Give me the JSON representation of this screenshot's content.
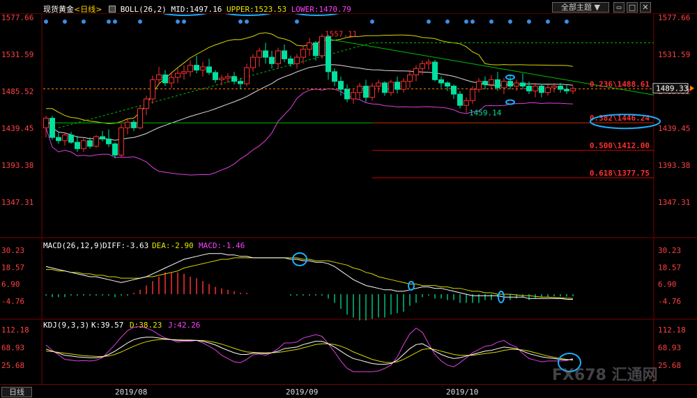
{
  "header": {
    "symbol": "现货黄金",
    "period_tag": "<日线>",
    "boll_label": "BOLL(26,2)",
    "mid": "MID:1497.16",
    "upper": "UPPER:1523.53",
    "lower": "LOWER:1470.79",
    "theme_button": "全部主题 ▼",
    "colors": {
      "mid": "#ffffff",
      "upper": "#e8e800",
      "lower": "#ff40ff",
      "title": "#ffffff",
      "period": "#ffd200"
    }
  },
  "bottom_bar": {
    "period_button": "日线",
    "date_labels": [
      "2019/08",
      "2019/09",
      "2019/10"
    ]
  },
  "watermark": {
    "text": "FX678 汇通网"
  },
  "chart_data": [
    {
      "type": "candlestick",
      "pane": "main",
      "yaxis_ticks": [
        "1577.66",
        "1531.59",
        "1485.52",
        "1439.45",
        "1393.38",
        "1347.31"
      ],
      "ylim": [
        1347.31,
        1577.66
      ],
      "last_price_label": "1489.33",
      "annotations": {
        "high_label": "1557.11",
        "low_label": "1459.14",
        "fib_levels": [
          {
            "label": "0.236\\1488.61",
            "value": 1488.61
          },
          {
            "label": "0.382\\1446.24",
            "value": 1446.24
          },
          {
            "label": "0.500\\1412.00",
            "value": 1412.0
          },
          {
            "label": "0.618\\1377.75",
            "value": 1377.75
          }
        ]
      },
      "candles": [
        [
          1440,
          1455,
          1428,
          1452
        ],
        [
          1452,
          1455,
          1425,
          1428
        ],
        [
          1428,
          1434,
          1420,
          1424
        ],
        [
          1424,
          1434,
          1418,
          1431
        ],
        [
          1431,
          1435,
          1420,
          1422
        ],
        [
          1422,
          1430,
          1410,
          1414
        ],
        [
          1414,
          1427,
          1410,
          1424
        ],
        [
          1424,
          1428,
          1414,
          1417
        ],
        [
          1417,
          1431,
          1415,
          1429
        ],
        [
          1429,
          1436,
          1423,
          1426
        ],
        [
          1426,
          1438,
          1416,
          1420
        ],
        [
          1420,
          1422,
          1402,
          1406
        ],
        [
          1406,
          1445,
          1404,
          1440
        ],
        [
          1440,
          1452,
          1432,
          1447
        ],
        [
          1447,
          1450,
          1436,
          1440
        ],
        [
          1440,
          1468,
          1438,
          1464
        ],
        [
          1464,
          1480,
          1456,
          1476
        ],
        [
          1476,
          1505,
          1470,
          1500
        ],
        [
          1500,
          1516,
          1494,
          1506
        ],
        [
          1506,
          1512,
          1492,
          1496
        ],
        [
          1496,
          1510,
          1490,
          1503
        ],
        [
          1503,
          1514,
          1496,
          1508
        ],
        [
          1508,
          1518,
          1500,
          1510
        ],
        [
          1510,
          1524,
          1504,
          1518
        ],
        [
          1518,
          1530,
          1508,
          1512
        ],
        [
          1512,
          1522,
          1504,
          1516
        ],
        [
          1516,
          1526,
          1506,
          1509
        ],
        [
          1509,
          1512,
          1496,
          1500
        ],
        [
          1500,
          1506,
          1493,
          1502
        ],
        [
          1502,
          1508,
          1496,
          1504
        ],
        [
          1504,
          1510,
          1494,
          1498
        ],
        [
          1498,
          1502,
          1488,
          1495
        ],
        [
          1495,
          1520,
          1492,
          1515
        ],
        [
          1515,
          1532,
          1510,
          1528
        ],
        [
          1528,
          1540,
          1516,
          1536
        ],
        [
          1536,
          1546,
          1520,
          1528
        ],
        [
          1528,
          1536,
          1514,
          1520
        ],
        [
          1520,
          1540,
          1514,
          1536
        ],
        [
          1536,
          1544,
          1522,
          1526
        ],
        [
          1526,
          1530,
          1516,
          1520
        ],
        [
          1520,
          1532,
          1514,
          1528
        ],
        [
          1528,
          1543,
          1520,
          1538
        ],
        [
          1538,
          1552,
          1530,
          1546
        ],
        [
          1546,
          1548,
          1524,
          1530
        ],
        [
          1530,
          1557,
          1526,
          1554
        ],
        [
          1554,
          1556,
          1500,
          1510
        ],
        [
          1510,
          1514,
          1492,
          1498
        ],
        [
          1498,
          1504,
          1480,
          1488
        ],
        [
          1488,
          1494,
          1472,
          1476
        ],
        [
          1476,
          1488,
          1470,
          1484
        ],
        [
          1484,
          1496,
          1476,
          1492
        ],
        [
          1492,
          1500,
          1472,
          1478
        ],
        [
          1478,
          1496,
          1474,
          1492
        ],
        [
          1492,
          1500,
          1484,
          1496
        ],
        [
          1496,
          1498,
          1480,
          1484
        ],
        [
          1484,
          1500,
          1480,
          1497
        ],
        [
          1497,
          1504,
          1483,
          1488
        ],
        [
          1488,
          1502,
          1484,
          1498
        ],
        [
          1498,
          1512,
          1490,
          1506
        ],
        [
          1506,
          1518,
          1498,
          1514
        ],
        [
          1514,
          1524,
          1506,
          1520
        ],
        [
          1520,
          1526,
          1512,
          1522
        ],
        [
          1522,
          1525,
          1498,
          1500
        ],
        [
          1500,
          1504,
          1490,
          1496
        ],
        [
          1496,
          1498,
          1486,
          1492
        ],
        [
          1492,
          1494,
          1476,
          1482
        ],
        [
          1482,
          1486,
          1464,
          1468
        ],
        [
          1468,
          1478,
          1459,
          1474
        ],
        [
          1474,
          1492,
          1470,
          1488
        ],
        [
          1488,
          1502,
          1484,
          1498
        ],
        [
          1498,
          1504,
          1488,
          1494
        ],
        [
          1494,
          1506,
          1488,
          1500
        ],
        [
          1500,
          1510,
          1486,
          1490
        ],
        [
          1490,
          1502,
          1482,
          1498
        ],
        [
          1498,
          1506,
          1488,
          1492
        ],
        [
          1492,
          1500,
          1486,
          1496
        ],
        [
          1496,
          1508,
          1488,
          1492
        ],
        [
          1492,
          1498,
          1482,
          1486
        ],
        [
          1486,
          1496,
          1478,
          1492
        ],
        [
          1492,
          1494,
          1478,
          1484
        ],
        [
          1484,
          1494,
          1480,
          1490
        ],
        [
          1490,
          1496,
          1484,
          1492
        ],
        [
          1492,
          1496,
          1484,
          1488
        ],
        [
          1488,
          1494,
          1482,
          1486
        ],
        [
          1486,
          1492,
          1482,
          1489
        ]
      ]
    },
    {
      "type": "line+bar",
      "pane": "macd",
      "title": "MACD(26,12,9)",
      "legend": [
        "DIFF:-3.63",
        "DEA:-2.90",
        "MACD:-1.46"
      ],
      "yaxis_ticks": [
        "30.23",
        "18.57",
        "6.90",
        "-4.76"
      ],
      "ylim": [
        -8,
        32
      ],
      "diff": [
        19,
        18,
        17,
        16,
        15,
        14,
        13,
        12,
        12,
        11,
        10,
        9,
        8,
        9,
        10,
        11,
        12,
        14,
        16,
        18,
        20,
        22,
        24,
        25,
        26,
        27,
        28,
        28,
        28,
        27,
        27,
        26,
        26,
        25,
        25,
        25,
        25,
        25,
        25,
        24,
        24,
        23,
        23,
        22,
        22,
        21,
        19,
        16,
        13,
        10,
        8,
        6,
        5,
        4,
        3,
        3,
        2,
        2,
        3,
        4,
        5,
        5,
        4,
        4,
        3,
        2,
        1,
        0,
        -1,
        -1,
        -1,
        -1,
        -1,
        -2,
        -2,
        -2,
        -2,
        -3,
        -3,
        -3,
        -3,
        -3,
        -3,
        -3.5,
        -3.63
      ],
      "dea": [
        17,
        17,
        16,
        16,
        15,
        15,
        14,
        14,
        13,
        13,
        12,
        12,
        11,
        11,
        11,
        11,
        12,
        12,
        13,
        14,
        15,
        16,
        18,
        19,
        20,
        21,
        22,
        23,
        24,
        24,
        25,
        25,
        25,
        25,
        25,
        25,
        25,
        25,
        25,
        25,
        25,
        24,
        24,
        23,
        23,
        23,
        22,
        21,
        20,
        18,
        17,
        15,
        14,
        12,
        11,
        10,
        9,
        8,
        7,
        7,
        6,
        6,
        6,
        5,
        5,
        4,
        4,
        3,
        2,
        2,
        1,
        1,
        0,
        0,
        0,
        -0.5,
        -1,
        -1,
        -1.5,
        -2,
        -2,
        -2.3,
        -2.5,
        -2.7,
        -2.9
      ],
      "macd": [
        -1,
        -2,
        -2,
        -2,
        -1,
        -1,
        -1,
        -1,
        -1,
        -1,
        -1,
        -2,
        -1,
        -1,
        1,
        3,
        6,
        9,
        12,
        15,
        15,
        15,
        14,
        12,
        11,
        9,
        7,
        5,
        4,
        3,
        2,
        1,
        1,
        0,
        0,
        0,
        0,
        0,
        0,
        -1,
        -1,
        -1,
        -1,
        -1,
        -1,
        -3,
        -6,
        -10,
        -14,
        -16,
        -18,
        -18,
        -17,
        -16,
        -16,
        -14,
        -13,
        -12,
        -8,
        -6,
        -2,
        -1,
        -3,
        -3,
        -4,
        -4,
        -6,
        -6,
        -6,
        -6,
        -4,
        -4,
        -2,
        -4,
        -4,
        -3,
        -2,
        -4,
        -3,
        -2,
        -2,
        -1.5,
        -1.5,
        -1.6,
        -1.46
      ]
    },
    {
      "type": "line",
      "pane": "kdj",
      "title": "KDJ(9,3,3)",
      "legend": [
        "K:39.57",
        "D:38.23",
        "J:42.26"
      ],
      "yaxis_ticks": [
        "112.18",
        "68.93",
        "25.68"
      ],
      "ylim": [
        -5,
        125
      ],
      "k": [
        65,
        60,
        55,
        50,
        48,
        46,
        45,
        44,
        44,
        46,
        52,
        60,
        70,
        80,
        88,
        92,
        94,
        94,
        92,
        90,
        88,
        86,
        86,
        86,
        86,
        84,
        80,
        75,
        68,
        62,
        56,
        52,
        52,
        55,
        55,
        54,
        56,
        60,
        66,
        68,
        70,
        76,
        80,
        84,
        84,
        78,
        70,
        60,
        50,
        42,
        38,
        34,
        30,
        28,
        28,
        30,
        38,
        52,
        66,
        76,
        78,
        70,
        60,
        52,
        46,
        42,
        44,
        48,
        52,
        56,
        60,
        62,
        66,
        70,
        68,
        66,
        60,
        54,
        50,
        46,
        44,
        42,
        40,
        39,
        39.57
      ],
      "d": [
        60,
        59,
        57,
        55,
        53,
        51,
        49,
        48,
        47,
        47,
        48,
        52,
        58,
        65,
        72,
        78,
        83,
        86,
        88,
        89,
        88,
        88,
        87,
        87,
        86,
        86,
        84,
        81,
        77,
        72,
        67,
        62,
        58,
        57,
        56,
        56,
        56,
        57,
        59,
        62,
        64,
        68,
        72,
        76,
        78,
        78,
        76,
        72,
        66,
        58,
        52,
        46,
        40,
        36,
        33,
        32,
        34,
        40,
        48,
        56,
        64,
        66,
        64,
        60,
        56,
        52,
        50,
        50,
        50,
        52,
        54,
        56,
        58,
        62,
        64,
        64,
        63,
        60,
        56,
        52,
        48,
        45,
        42,
        40,
        38.23
      ],
      "j": [
        75,
        62,
        51,
        40,
        38,
        36,
        37,
        36,
        38,
        44,
        60,
        76,
        94,
        110,
        118,
        120,
        116,
        110,
        100,
        92,
        88,
        82,
        84,
        84,
        86,
        80,
        72,
        63,
        50,
        42,
        34,
        32,
        40,
        51,
        53,
        50,
        56,
        66,
        80,
        80,
        82,
        92,
        96,
        100,
        96,
        78,
        58,
        36,
        18,
        10,
        10,
        10,
        10,
        12,
        18,
        26,
        46,
        76,
        102,
        116,
        106,
        78,
        52,
        36,
        26,
        22,
        32,
        44,
        56,
        64,
        72,
        74,
        82,
        86,
        76,
        70,
        54,
        42,
        38,
        34,
        36,
        36,
        36,
        37,
        42.26
      ]
    }
  ]
}
